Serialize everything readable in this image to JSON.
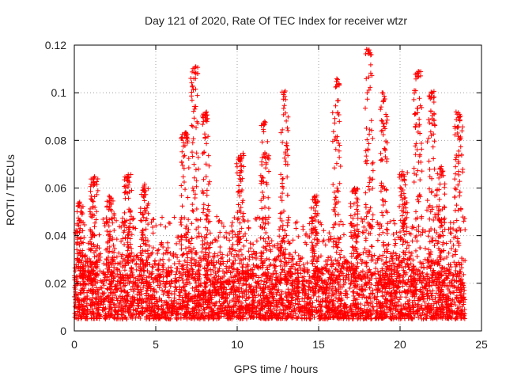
{
  "chart_data": {
    "type": "scatter",
    "title": "Day 121 of 2020, Rate Of TEC Index for receiver wtzr",
    "xlabel": "GPS time / hours",
    "ylabel": "ROTI / TECUs",
    "xlim": [
      0,
      25
    ],
    "ylim": [
      0,
      0.12
    ],
    "xticks": [
      0,
      5,
      10,
      15,
      20,
      25
    ],
    "yticks": [
      0,
      0.02,
      0.04,
      0.06,
      0.08,
      0.1,
      0.12
    ],
    "xtick_labels": [
      "0",
      "5",
      "10",
      "15",
      "20",
      "25"
    ],
    "ytick_labels": [
      "0",
      "0.02",
      "0.04",
      "0.06",
      "0.08",
      "0.1",
      "0.12"
    ],
    "grid": true,
    "marker": "+",
    "color": "#ff0000",
    "series": [
      {
        "name": "ROTI",
        "note": "dense cloud of ~10k points, y mostly 0.005-0.035, x spans 0-24 h",
        "baseline_range": [
          0.005,
          0.035
        ],
        "spikes": [
          {
            "x": 0.3,
            "y": 0.055
          },
          {
            "x": 1.2,
            "y": 0.065
          },
          {
            "x": 2.2,
            "y": 0.057
          },
          {
            "x": 3.3,
            "y": 0.066
          },
          {
            "x": 4.3,
            "y": 0.062
          },
          {
            "x": 6.8,
            "y": 0.084
          },
          {
            "x": 7.4,
            "y": 0.111
          },
          {
            "x": 8.1,
            "y": 0.092
          },
          {
            "x": 10.2,
            "y": 0.075
          },
          {
            "x": 11.7,
            "y": 0.088
          },
          {
            "x": 12.9,
            "y": 0.101
          },
          {
            "x": 14.8,
            "y": 0.057
          },
          {
            "x": 16.1,
            "y": 0.106
          },
          {
            "x": 17.2,
            "y": 0.06
          },
          {
            "x": 18.1,
            "y": 0.12
          },
          {
            "x": 19.0,
            "y": 0.1
          },
          {
            "x": 20.2,
            "y": 0.067
          },
          {
            "x": 21.1,
            "y": 0.11
          },
          {
            "x": 21.9,
            "y": 0.101
          },
          {
            "x": 22.5,
            "y": 0.069
          },
          {
            "x": 23.6,
            "y": 0.092
          }
        ]
      }
    ]
  }
}
